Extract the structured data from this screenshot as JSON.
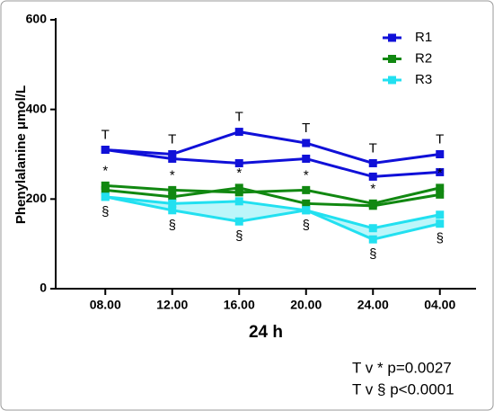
{
  "chart_data": {
    "type": "line",
    "ylabel": "Phenylalanine μmol/L",
    "xlabel": "24 h",
    "categories": [
      "08.00",
      "12.00",
      "16.00",
      "20.00",
      "24.00",
      "04.00"
    ],
    "series": [
      {
        "name": "R1",
        "color": "#1010d8",
        "symbol": "T",
        "symbol_side": "above",
        "lines": [
          [
            310,
            300,
            350,
            325,
            280,
            300
          ],
          [
            310,
            290,
            280,
            290,
            250,
            260
          ]
        ]
      },
      {
        "name": "R2",
        "color": "#118811",
        "symbol": "*",
        "symbol_side": "above",
        "lines": [
          [
            230,
            220,
            215,
            220,
            190,
            225
          ],
          [
            220,
            205,
            225,
            190,
            185,
            210
          ]
        ]
      },
      {
        "name": "R3",
        "color": "#22e0f0",
        "symbol": "§",
        "symbol_side": "below",
        "band": true,
        "lines": [
          [
            205,
            190,
            195,
            175,
            135,
            165
          ],
          [
            205,
            175,
            150,
            175,
            110,
            145
          ]
        ]
      }
    ],
    "ylim": [
      0,
      600
    ],
    "yticks": [
      0,
      200,
      400,
      600
    ],
    "notes": [
      "T v * p=0.0027",
      "T v § p<0.0001"
    ]
  }
}
